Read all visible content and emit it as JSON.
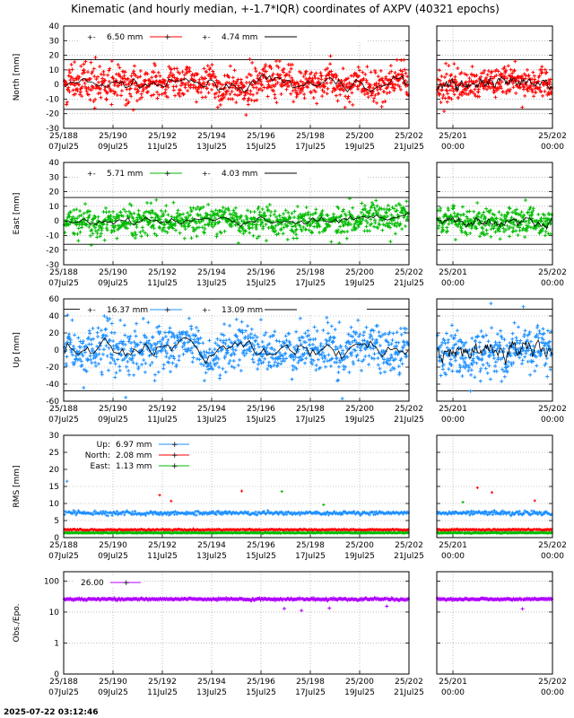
{
  "title": "Kinematic (and hourly median, +-1.7*IQR) coordinates of AXPV (40321 epochs)",
  "footer_timestamp": "2025-07-22 03:12:46",
  "x_axis": {
    "main_ticks": [
      {
        "top": "25/188",
        "bottom": "07Jul25"
      },
      {
        "top": "25/190",
        "bottom": "09Jul25"
      },
      {
        "top": "25/192",
        "bottom": "11Jul25"
      },
      {
        "top": "25/194",
        "bottom": "13Jul25"
      },
      {
        "top": "25/196",
        "bottom": "15Jul25"
      },
      {
        "top": "25/198",
        "bottom": "17Jul25"
      },
      {
        "top": "25/200",
        "bottom": "19Jul25"
      },
      {
        "top": "25/202",
        "bottom": "21Jul25"
      }
    ],
    "zoom_ticks": [
      {
        "top": "25/201",
        "bottom": "00:00"
      },
      {
        "top": "25/202",
        "bottom": "00:00"
      }
    ]
  },
  "chart_data": [
    {
      "type": "scatter",
      "name": "north",
      "ylabel": "North [mm]",
      "ylim": [
        -30,
        40
      ],
      "yticks": [
        40,
        30,
        20,
        10,
        0,
        -10,
        -20,
        -30
      ],
      "color": "#ff0000",
      "iqr_lines": [
        17,
        -17
      ],
      "legend": [
        {
          "label": "6.50 mm",
          "color": "#ff0000"
        },
        {
          "label": "4.74 mm",
          "color": "#000000"
        }
      ],
      "kinematic_spread": 10,
      "median_amplitude": 4
    },
    {
      "type": "scatter",
      "name": "east",
      "ylabel": "East [mm]",
      "ylim": [
        -30,
        40
      ],
      "yticks": [
        40,
        30,
        20,
        10,
        0,
        -10,
        -20,
        -30
      ],
      "color": "#00bb00",
      "iqr_lines": [
        16,
        -16
      ],
      "legend": [
        {
          "label": "5.71 mm",
          "color": "#00bb00"
        },
        {
          "label": "4.03 mm",
          "color": "#000000"
        }
      ],
      "kinematic_spread": 9,
      "median_amplitude": 3
    },
    {
      "type": "scatter",
      "name": "up",
      "ylabel": "Up [mm]",
      "ylim": [
        -60,
        60
      ],
      "yticks": [
        60,
        40,
        20,
        0,
        -20,
        -40,
        -60
      ],
      "color": "#1e90ff",
      "iqr_lines": [
        48,
        -48
      ],
      "legend": [
        {
          "label": "16.37 mm",
          "color": "#1e90ff"
        },
        {
          "label": "13.09 mm",
          "color": "#000000"
        }
      ],
      "kinematic_spread": 24,
      "median_amplitude": 10
    },
    {
      "type": "line",
      "name": "rms",
      "ylabel": "RMS [mm]",
      "ylim": [
        0,
        30
      ],
      "yticks": [
        30,
        25,
        20,
        15,
        10,
        5,
        0
      ],
      "series": [
        {
          "name": "Up:",
          "label": "6.97 mm",
          "color": "#1e90ff",
          "level": 7.2
        },
        {
          "name": "North:",
          "label": "2.08 mm",
          "color": "#ff0000",
          "level": 2.3
        },
        {
          "name": "East:",
          "label": "1.13 mm",
          "color": "#00bb00",
          "level": 1.4
        }
      ]
    },
    {
      "type": "scatter",
      "name": "obs",
      "ylabel": "Obs./Epo.",
      "scale": "log",
      "ylim": [
        0.1,
        200
      ],
      "yticks": [
        {
          "value": 100,
          "label": "100"
        },
        {
          "value": 10,
          "label": "10"
        },
        {
          "value": 1,
          "label": "1"
        },
        {
          "value": 0.1,
          "label": "0"
        }
      ],
      "color": "#b000ff",
      "legend": [
        {
          "label": "26.00",
          "color": "#b000ff"
        }
      ],
      "level": 26
    }
  ]
}
